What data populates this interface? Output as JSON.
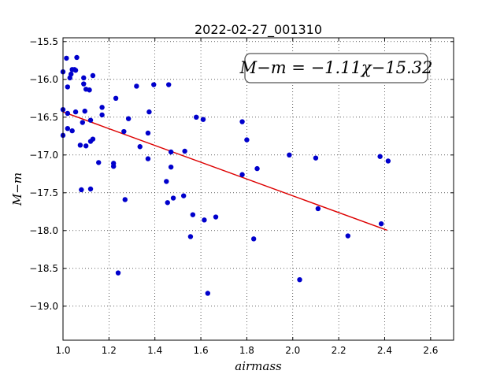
{
  "chart_data": {
    "type": "scatter",
    "title": "2022-02-27_001310",
    "xlabel": "airmass",
    "ylabel": "M−m",
    "xlim": [
      1.0,
      2.7
    ],
    "ylim": [
      -19.45,
      -15.45
    ],
    "y_inverted": true,
    "grid": true,
    "grid_style": "dotted",
    "xticks": [
      "1.0",
      "1.2",
      "1.4",
      "1.6",
      "1.8",
      "2.0",
      "2.2",
      "2.4",
      "2.6"
    ],
    "yticks": [
      "−15.5",
      "−16.0",
      "−16.5",
      "−17.0",
      "−17.5",
      "−18.0",
      "−18.5",
      "−19.0"
    ],
    "annotation": "M−m = −1.11χ−15.32",
    "colors": {
      "points": "#0000cc",
      "fit_line": "#dd0000"
    },
    "fit": {
      "slope": -1.11,
      "intercept": -15.32,
      "x_range": [
        1.0,
        2.41
      ]
    },
    "points": [
      [
        1.0,
        -15.9
      ],
      [
        1.0,
        -16.4
      ],
      [
        1.0,
        -16.74
      ],
      [
        1.015,
        -15.72
      ],
      [
        1.02,
        -16.1
      ],
      [
        1.02,
        -16.45
      ],
      [
        1.02,
        -16.65
      ],
      [
        1.03,
        -15.98
      ],
      [
        1.035,
        -15.93
      ],
      [
        1.04,
        -15.87
      ],
      [
        1.04,
        -16.68
      ],
      [
        1.05,
        -15.87
      ],
      [
        1.055,
        -15.88
      ],
      [
        1.055,
        -16.43
      ],
      [
        1.06,
        -15.71
      ],
      [
        1.075,
        -16.87
      ],
      [
        1.08,
        -17.46
      ],
      [
        1.085,
        -16.57
      ],
      [
        1.09,
        -15.98
      ],
      [
        1.09,
        -16.06
      ],
      [
        1.095,
        -16.42
      ],
      [
        1.1,
        -16.13
      ],
      [
        1.1,
        -16.88
      ],
      [
        1.115,
        -16.14
      ],
      [
        1.12,
        -16.54
      ],
      [
        1.12,
        -16.82
      ],
      [
        1.12,
        -17.45
      ],
      [
        1.13,
        -15.95
      ],
      [
        1.13,
        -16.79
      ],
      [
        1.155,
        -17.1
      ],
      [
        1.17,
        -16.37
      ],
      [
        1.17,
        -16.47
      ],
      [
        1.22,
        -17.11
      ],
      [
        1.22,
        -17.15
      ],
      [
        1.23,
        -16.25
      ],
      [
        1.24,
        -18.56
      ],
      [
        1.265,
        -16.69
      ],
      [
        1.27,
        -17.59
      ],
      [
        1.285,
        -16.52
      ],
      [
        1.32,
        -16.09
      ],
      [
        1.335,
        -16.89
      ],
      [
        1.37,
        -16.71
      ],
      [
        1.37,
        -17.05
      ],
      [
        1.375,
        -16.43
      ],
      [
        1.395,
        -16.07
      ],
      [
        1.45,
        -17.35
      ],
      [
        1.455,
        -17.63
      ],
      [
        1.46,
        -16.07
      ],
      [
        1.47,
        -16.96
      ],
      [
        1.47,
        -17.16
      ],
      [
        1.48,
        -17.57
      ],
      [
        1.525,
        -17.54
      ],
      [
        1.53,
        -16.95
      ],
      [
        1.555,
        -18.08
      ],
      [
        1.565,
        -17.79
      ],
      [
        1.58,
        -16.5
      ],
      [
        1.61,
        -16.53
      ],
      [
        1.615,
        -17.86
      ],
      [
        1.63,
        -18.83
      ],
      [
        1.665,
        -17.82
      ],
      [
        1.78,
        -16.56
      ],
      [
        1.78,
        -17.26
      ],
      [
        1.8,
        -16.8
      ],
      [
        1.83,
        -18.11
      ],
      [
        1.845,
        -17.18
      ],
      [
        1.985,
        -17.0
      ],
      [
        2.03,
        -18.65
      ],
      [
        2.1,
        -17.04
      ],
      [
        2.11,
        -17.71
      ],
      [
        2.24,
        -18.07
      ],
      [
        2.38,
        -17.02
      ],
      [
        2.385,
        -17.91
      ],
      [
        2.415,
        -17.08
      ]
    ]
  }
}
